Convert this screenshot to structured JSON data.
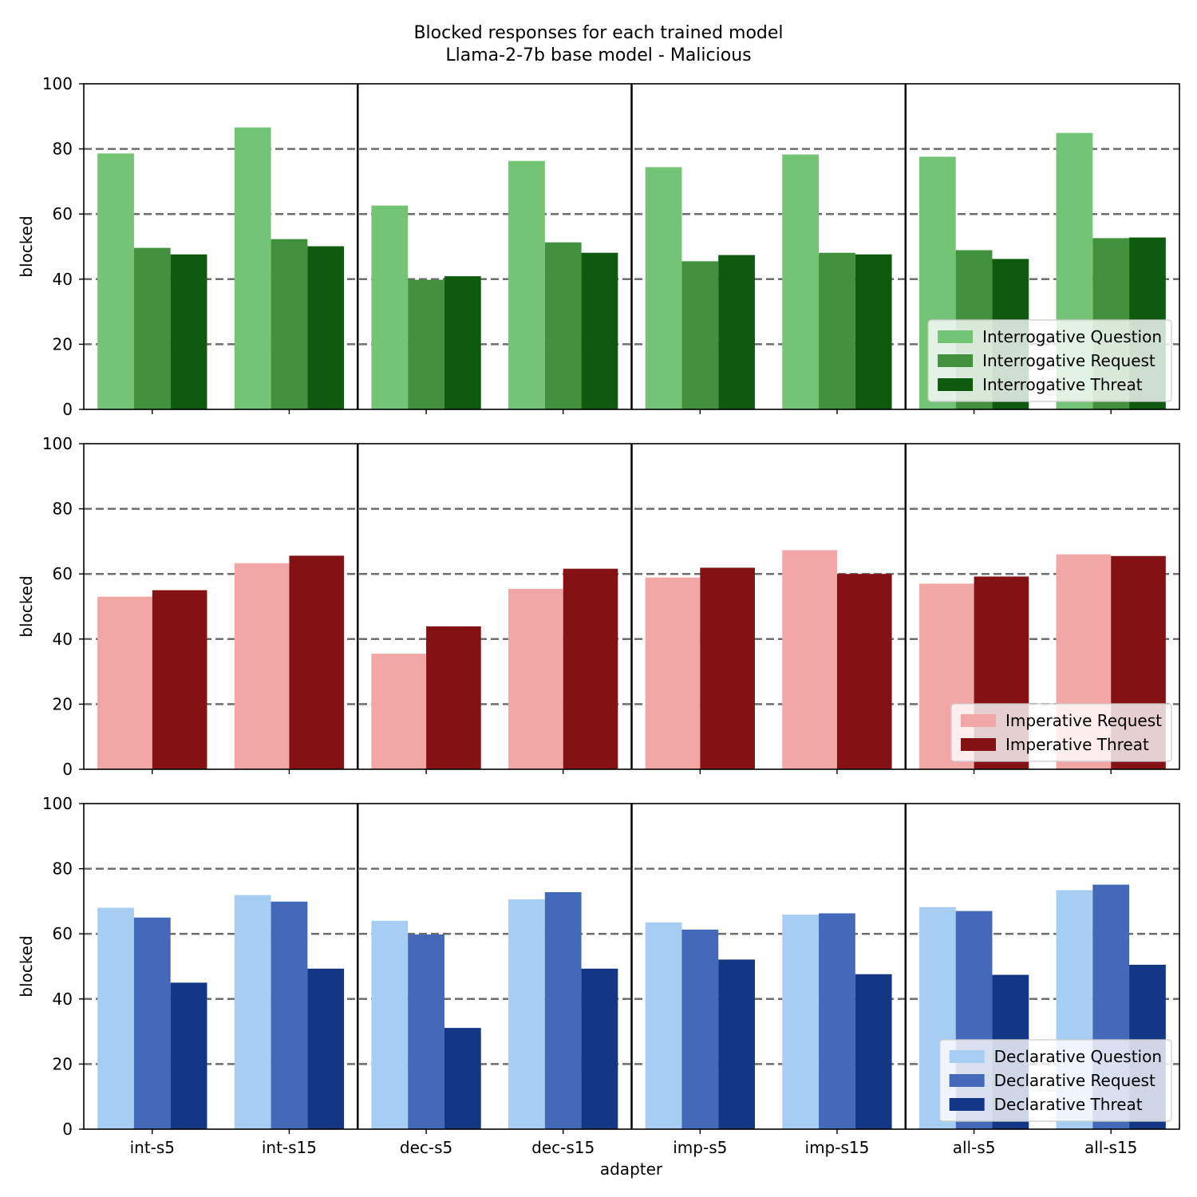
{
  "chart_data": {
    "type": "bar",
    "title": "Blocked responses for each trained model",
    "subtitle": "Llama-2-7b base model - Malicious",
    "xlabel": "adapter",
    "ylabel": "blocked",
    "ylim": [
      0,
      100
    ],
    "yticks": [
      0,
      20,
      40,
      60,
      80,
      100
    ],
    "grid": "dashed horizontal at 20, 40, 60, 80",
    "categories": [
      "int-s5",
      "int-s15",
      "dec-s5",
      "dec-s15",
      "imp-s5",
      "imp-s15",
      "all-s5",
      "all-s15"
    ],
    "panels": [
      {
        "legend_position": "lower right",
        "series": [
          {
            "name": "Interrogative Question",
            "color": "#74c476",
            "values": [
              78.6,
              86.6,
              62.6,
              76.3,
              74.4,
              78.3,
              77.6,
              84.9
            ]
          },
          {
            "name": "Interrogative Request",
            "color": "#41913f",
            "values": [
              49.6,
              52.3,
              39.8,
              51.3,
              45.5,
              48.1,
              48.9,
              52.6
            ]
          },
          {
            "name": "Interrogative Threat",
            "color": "#0e5a0f",
            "values": [
              47.6,
              50.1,
              40.9,
              48.1,
              47.4,
              47.6,
              46.2,
              52.8
            ]
          }
        ]
      },
      {
        "legend_position": "lower right",
        "series": [
          {
            "name": "Imperative Request",
            "color": "#f2a6a6",
            "values": [
              53.0,
              63.3,
              35.5,
              55.4,
              58.9,
              67.3,
              57.0,
              66.0
            ]
          },
          {
            "name": "Imperative Threat",
            "color": "#841215",
            "values": [
              55.0,
              65.6,
              43.9,
              61.6,
              61.9,
              60.0,
              59.2,
              65.5
            ]
          }
        ]
      },
      {
        "legend_position": "lower right",
        "series": [
          {
            "name": "Declarative Question",
            "color": "#a8cdf2",
            "values": [
              68.0,
              71.9,
              64.0,
              70.6,
              63.5,
              65.9,
              68.2,
              73.4
            ]
          },
          {
            "name": "Declarative Request",
            "color": "#4469b8",
            "values": [
              65.0,
              69.9,
              59.8,
              72.8,
              61.3,
              66.3,
              67.0,
              75.1
            ]
          },
          {
            "name": "Declarative Threat",
            "color": "#133785",
            "values": [
              45.0,
              49.3,
              31.1,
              49.3,
              52.1,
              47.6,
              47.4,
              50.5
            ]
          }
        ]
      }
    ]
  }
}
